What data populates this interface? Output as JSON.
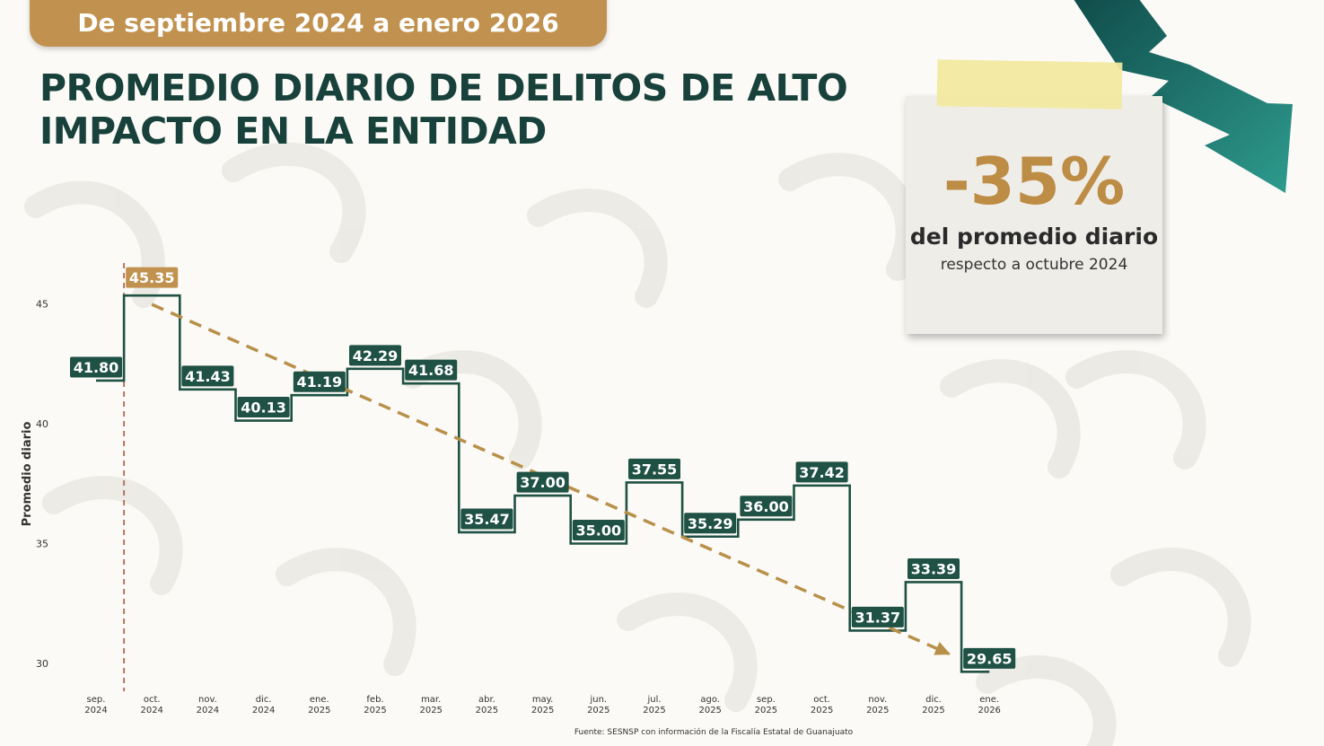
{
  "header": {
    "period": "De septiembre 2024 a enero 2026"
  },
  "title": {
    "line1": "PROMEDIO DIARIO DE DELITOS DE ALTO",
    "line2": "IMPACTO EN LA ENTIDAD"
  },
  "note": {
    "percent": "-35%",
    "line1": "del promedio diario",
    "line2": "respecto a octubre 2024"
  },
  "source": "Fuente: SESNSP con información de la Fiscalía Estatal de Guanajuato",
  "colors": {
    "primary": "#1f5144",
    "accent": "#b8904a",
    "title": "#17413a",
    "arrow": "#1d6a63"
  },
  "icons": [
    "down-trend-arrow-icon"
  ],
  "chart_data": {
    "type": "line",
    "step": true,
    "ylabel": "Promedio diario",
    "ylim": [
      29,
      46.5
    ],
    "yticks": [
      30,
      35,
      40,
      45
    ],
    "categories": [
      [
        "sep.",
        "2024"
      ],
      [
        "oct.",
        "2024"
      ],
      [
        "nov.",
        "2024"
      ],
      [
        "dic.",
        "2024"
      ],
      [
        "ene.",
        "2025"
      ],
      [
        "feb.",
        "2025"
      ],
      [
        "mar.",
        "2025"
      ],
      [
        "abr.",
        "2025"
      ],
      [
        "may.",
        "2025"
      ],
      [
        "jun.",
        "2025"
      ],
      [
        "jul.",
        "2025"
      ],
      [
        "ago.",
        "2025"
      ],
      [
        "sep.",
        "2025"
      ],
      [
        "oct.",
        "2025"
      ],
      [
        "nov.",
        "2025"
      ],
      [
        "dic.",
        "2025"
      ],
      [
        "ene.",
        "2026"
      ]
    ],
    "values": [
      41.8,
      45.35,
      41.43,
      40.13,
      41.19,
      42.29,
      41.68,
      35.47,
      37.0,
      35.0,
      37.55,
      35.29,
      36.0,
      37.42,
      31.37,
      33.39,
      29.65
    ],
    "labels": [
      "41.80",
      "45.35",
      "41.43",
      "40.13",
      "41.19",
      "42.29",
      "41.68",
      "35.47",
      "37.00",
      "35.00",
      "37.55",
      "35.29",
      "36.00",
      "37.42",
      "31.37",
      "33.39",
      "29.65"
    ],
    "highlight_index": 1,
    "trendline": {
      "from_index": 1,
      "to_index": 16,
      "style": "dashed"
    },
    "grid": false
  }
}
